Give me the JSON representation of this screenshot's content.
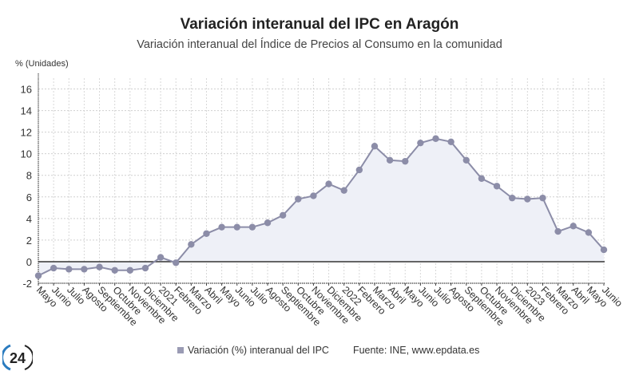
{
  "header": {
    "title": "Variación interanual del IPC en Aragón",
    "subtitle": "Variación interanual del Índice de Precios al Consumo en la comunidad"
  },
  "legend": {
    "series_label": "Variación (%) interanual del IPC",
    "source": "Fuente: INE, www.epdata.es"
  },
  "logo": {
    "text": "24"
  },
  "chart_data": {
    "type": "area",
    "title": "Variación interanual del IPC en Aragón",
    "subtitle": "Variación interanual del Índice de Precios al Consumo en la comunidad",
    "ylabel": "% (Unidades)",
    "xlabel": "",
    "ylim": [
      -2,
      17
    ],
    "yticks": [
      -2,
      0,
      2,
      4,
      6,
      8,
      10,
      12,
      14,
      16
    ],
    "grid": true,
    "legend_position": "bottom",
    "categories": [
      "Mayo",
      "Junio",
      "Julio",
      "Agosto",
      "Septiembre",
      "Octubre",
      "Noviembre",
      "Diciembre",
      "2021",
      "Febrero",
      "Marzo",
      "Abril",
      "Mayo",
      "Junio",
      "Julio",
      "Agosto",
      "Septiembre",
      "Octubre",
      "Noviembre",
      "Diciembre",
      "2022",
      "Febrero",
      "Marzo",
      "Abril",
      "Mayo",
      "Junio",
      "Julio",
      "Agosto",
      "Septiembre",
      "Octubre",
      "Noviembre",
      "Diciembre",
      "2023",
      "Febrero",
      "Marzo",
      "Abril",
      "Mayo",
      "Junio"
    ],
    "series": [
      {
        "name": "Variación (%) interanual del IPC",
        "color": "#8c8da8",
        "fill": "#eef0f7",
        "values": [
          -1.3,
          -0.6,
          -0.7,
          -0.7,
          -0.5,
          -0.8,
          -0.8,
          -0.6,
          0.4,
          -0.1,
          1.6,
          2.6,
          3.2,
          3.2,
          3.2,
          3.6,
          4.3,
          5.8,
          6.1,
          7.2,
          6.6,
          8.5,
          10.7,
          9.4,
          9.3,
          11.0,
          11.4,
          11.1,
          9.4,
          7.7,
          7.0,
          5.9,
          5.8,
          5.9,
          2.8,
          3.3,
          2.7,
          1.1
        ]
      }
    ]
  }
}
